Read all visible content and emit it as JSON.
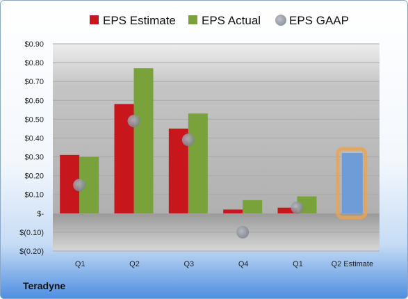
{
  "company": "Teradyne",
  "colors": {
    "estimate": "#c8161d",
    "actual": "#7aa23a",
    "gaap": "#8a8f99",
    "highlight_bar": "#6f9bd6",
    "highlight_glow": "#f0a24a"
  },
  "chart_data": {
    "type": "bar",
    "categories": [
      "Q1",
      "Q2",
      "Q3",
      "Q4",
      "Q1",
      "Q2 Estimate"
    ],
    "series": [
      {
        "name": "EPS Estimate",
        "values": [
          0.31,
          0.58,
          0.45,
          0.02,
          0.03,
          null
        ]
      },
      {
        "name": "EPS Actual",
        "values": [
          0.3,
          0.77,
          0.53,
          0.07,
          0.09,
          null
        ]
      },
      {
        "name": "EPS GAAP",
        "values": [
          0.15,
          0.49,
          0.39,
          -0.1,
          0.03,
          null
        ]
      }
    ],
    "highlight": {
      "category_index": 5,
      "value": 0.32
    },
    "yticks": [
      "$0.90",
      "$0.80",
      "$0.70",
      "$0.60",
      "$0.50",
      "$0.40",
      "$0.30",
      "$0.20",
      "$0.10",
      "$-",
      "$(0.10)",
      "$(0.20)"
    ],
    "ylim": [
      -0.2,
      0.9
    ],
    "legend": {
      "position": "top",
      "labels": [
        "EPS Estimate",
        "EPS Actual",
        "EPS GAAP"
      ]
    },
    "grid": true
  }
}
